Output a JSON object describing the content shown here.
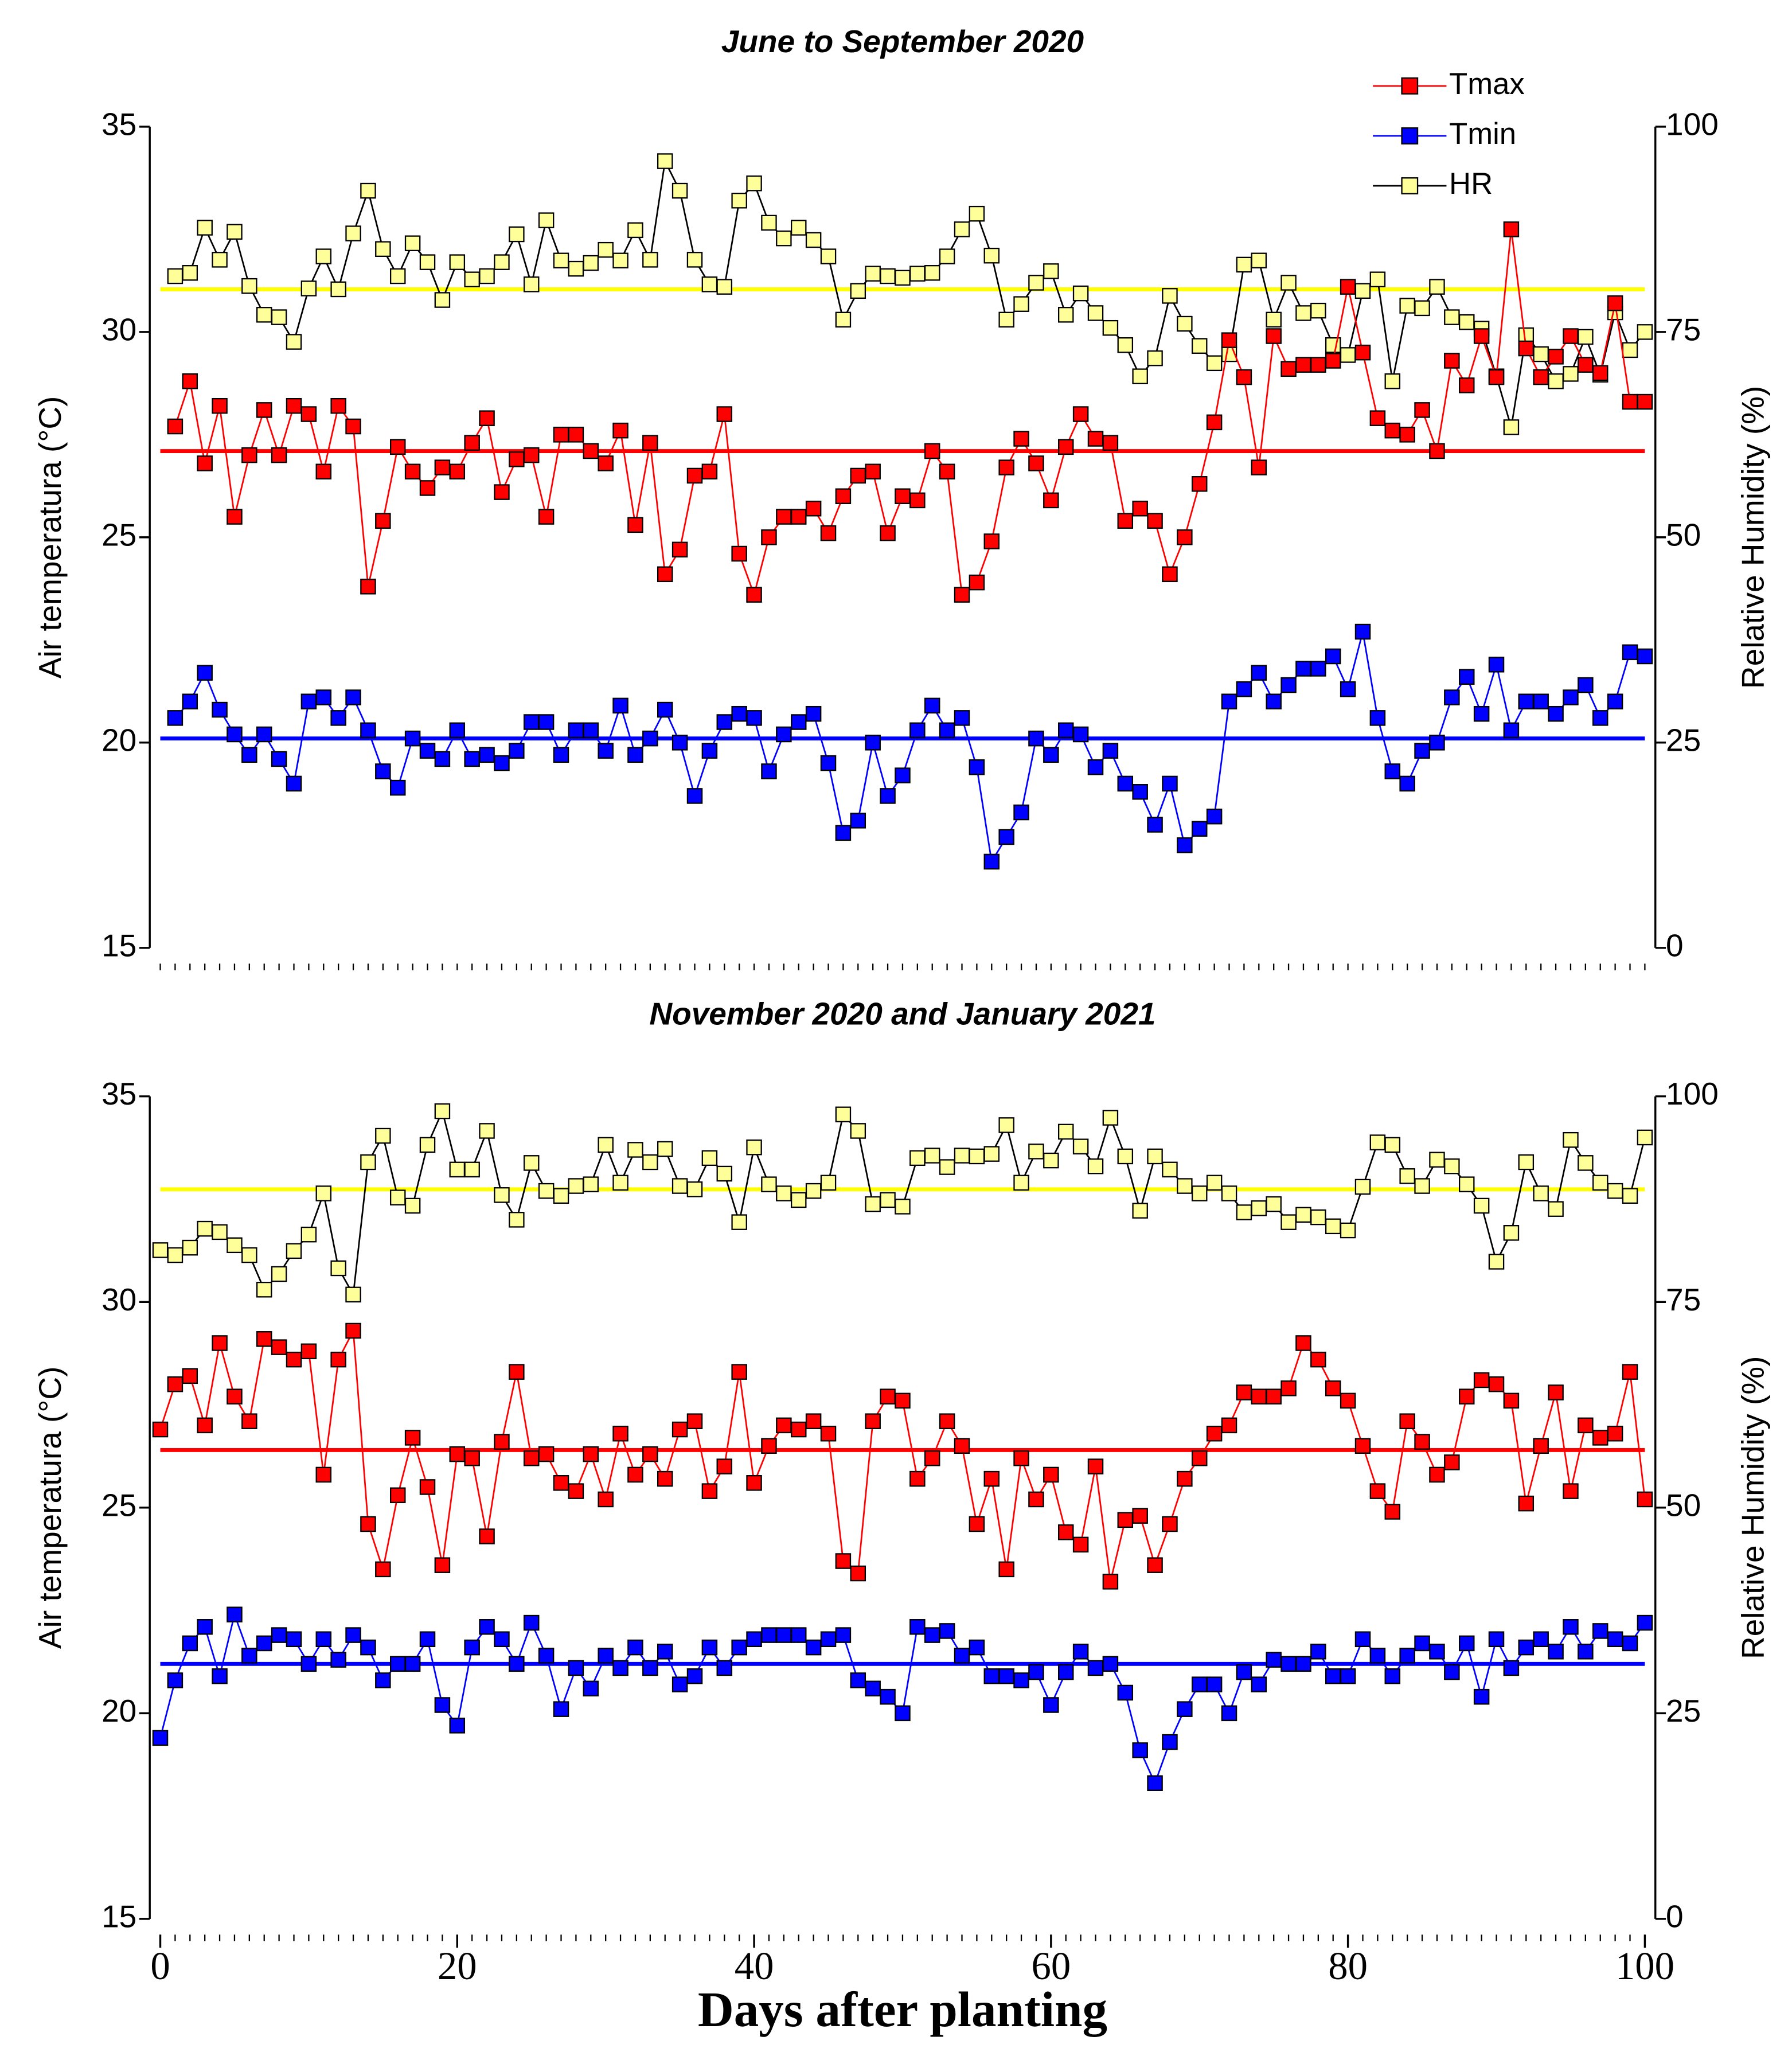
{
  "chart_data": [
    {
      "type": "line",
      "title": "June to September 2020",
      "y_label": "Air temperatura (°C)",
      "y2_label": "Relative Humidity (%)",
      "x": [
        1,
        2,
        3,
        4,
        5,
        6,
        7,
        8,
        9,
        10,
        11,
        12,
        13,
        14,
        15,
        16,
        17,
        18,
        19,
        20,
        21,
        22,
        23,
        24,
        25,
        26,
        27,
        28,
        29,
        30,
        31,
        32,
        33,
        34,
        35,
        36,
        37,
        38,
        39,
        40,
        41,
        42,
        43,
        44,
        45,
        46,
        47,
        48,
        49,
        50,
        51,
        52,
        53,
        54,
        55,
        56,
        57,
        58,
        59,
        60,
        61,
        62,
        63,
        64,
        65,
        66,
        67,
        68,
        69,
        70,
        71,
        72,
        73,
        74,
        75,
        76,
        77,
        78,
        79,
        80,
        81,
        82,
        83,
        84,
        85,
        86,
        87,
        88,
        89,
        90,
        91,
        92,
        93,
        94,
        95,
        96,
        97,
        98,
        99,
        100
      ],
      "xlim": [
        0,
        100
      ],
      "xminor": 1,
      "ylim": [
        15,
        35
      ],
      "yticks": [
        15,
        20,
        25,
        30,
        35
      ],
      "y2lim": [
        0,
        100
      ],
      "y2ticks": [
        0,
        25,
        50,
        75,
        100
      ],
      "legend": "upper right",
      "series": [
        {
          "name": "Tmax",
          "color": "#ff0000",
          "line_color": "#ff0000",
          "mean": 27.1,
          "mean_color": "#ff0000",
          "values": [
            27.7,
            28.8,
            26.8,
            28.2,
            25.5,
            27.0,
            28.1,
            27.0,
            28.2,
            28.0,
            26.6,
            28.2,
            27.7,
            23.8,
            25.4,
            27.2,
            26.6,
            26.2,
            26.7,
            26.6,
            27.3,
            27.9,
            26.1,
            26.9,
            27.0,
            25.5,
            27.5,
            27.5,
            27.1,
            26.8,
            27.6,
            25.3,
            27.3,
            24.1,
            24.7,
            26.5,
            26.6,
            28.0,
            24.6,
            23.6,
            25.0,
            25.5,
            25.5,
            25.7,
            25.1,
            26.0,
            26.5,
            26.6,
            25.1,
            26.0,
            25.9,
            27.1,
            26.6,
            23.6,
            23.9,
            24.9,
            26.7,
            27.4,
            26.8,
            25.9,
            27.2,
            28.0,
            27.4,
            27.3,
            25.4,
            25.7,
            25.4,
            24.1,
            25.0,
            26.3,
            27.8,
            29.8,
            28.9,
            26.7,
            29.9,
            29.1,
            29.2,
            29.2,
            29.3,
            31.1,
            29.5,
            27.9,
            27.6,
            27.5,
            28.1,
            27.1,
            29.3,
            28.7,
            29.9,
            28.9,
            32.5,
            29.6,
            28.9,
            29.4,
            29.9,
            29.2,
            29.0,
            30.7,
            28.3,
            28.3
          ]
        },
        {
          "name": "Tmin",
          "color": "#0000ff",
          "line_color": "#0000ff",
          "mean": 20.1,
          "mean_color": "#0000ff",
          "values": [
            20.6,
            21.0,
            21.7,
            20.8,
            20.2,
            19.7,
            20.2,
            19.6,
            19.0,
            21.0,
            21.1,
            20.6,
            21.1,
            20.3,
            19.3,
            18.9,
            20.1,
            19.8,
            19.6,
            20.3,
            19.6,
            19.7,
            19.5,
            19.8,
            20.5,
            20.5,
            19.7,
            20.3,
            20.3,
            19.8,
            20.9,
            19.7,
            20.1,
            20.8,
            20.0,
            18.7,
            19.8,
            20.5,
            20.7,
            20.6,
            19.3,
            20.2,
            20.5,
            20.7,
            19.5,
            17.8,
            18.1,
            20.0,
            18.7,
            19.2,
            20.3,
            20.9,
            20.3,
            20.6,
            19.4,
            17.1,
            17.7,
            18.3,
            20.1,
            19.7,
            20.3,
            20.2,
            19.4,
            19.8,
            19.0,
            18.8,
            18.0,
            19.0,
            17.5,
            17.9,
            18.2,
            21.0,
            21.3,
            21.7,
            21.0,
            21.4,
            21.8,
            21.8,
            22.1,
            21.3,
            22.7,
            20.6,
            19.3,
            19.0,
            19.8,
            20.0,
            21.1,
            21.6,
            20.7,
            21.9,
            20.3,
            21.0,
            21.0,
            20.7,
            21.1,
            21.4,
            20.6,
            21.0,
            22.2,
            22.1
          ]
        },
        {
          "name": "HR",
          "color": "#ffff99",
          "line_color": "#000000",
          "mean": 80.2,
          "mean_color": "#ffff00",
          "axis": "y2",
          "values": [
            81.8,
            82.2,
            87.7,
            83.8,
            87.2,
            80.6,
            77.1,
            76.8,
            73.8,
            80.3,
            84.2,
            80.2,
            87.0,
            92.2,
            85.1,
            81.8,
            85.8,
            83.5,
            78.9,
            83.5,
            81.4,
            81.8,
            83.5,
            86.9,
            80.8,
            88.6,
            83.7,
            82.7,
            83.4,
            85.0,
            83.7,
            87.4,
            83.8,
            95.8,
            92.2,
            83.8,
            80.8,
            80.5,
            91.0,
            93.1,
            88.3,
            86.4,
            87.7,
            86.2,
            84.2,
            76.5,
            80.0,
            82.1,
            81.8,
            81.6,
            82.1,
            82.2,
            84.2,
            87.5,
            89.4,
            84.3,
            76.5,
            78.4,
            81.0,
            82.4,
            77.1,
            79.7,
            77.3,
            75.5,
            73.4,
            69.6,
            71.8,
            79.4,
            76.0,
            73.3,
            71.2,
            72.3,
            83.2,
            83.7,
            76.5,
            81.0,
            77.3,
            77.6,
            73.4,
            72.2,
            80.0,
            81.4,
            69.0,
            78.2,
            77.9,
            80.5,
            76.8,
            76.2,
            75.4,
            69.6,
            63.4,
            74.6,
            72.3,
            69.0,
            69.9,
            74.4,
            69.8,
            77.4,
            72.8,
            75.0
          ]
        }
      ]
    },
    {
      "type": "line",
      "title": "November 2020 and January 2021",
      "y_label": "Air temperatura (°C)",
      "y2_label": "Relative Humidity (%)",
      "x_label": "Days after planting",
      "x": [
        0,
        1,
        2,
        3,
        4,
        5,
        6,
        7,
        8,
        9,
        10,
        11,
        12,
        13,
        14,
        15,
        16,
        17,
        18,
        19,
        20,
        21,
        22,
        23,
        24,
        25,
        26,
        27,
        28,
        29,
        30,
        31,
        32,
        33,
        34,
        35,
        36,
        37,
        38,
        39,
        40,
        41,
        42,
        43,
        44,
        45,
        46,
        47,
        48,
        49,
        50,
        51,
        52,
        53,
        54,
        55,
        56,
        57,
        58,
        59,
        60,
        61,
        62,
        63,
        64,
        65,
        66,
        67,
        68,
        69,
        70,
        71,
        72,
        73,
        74,
        75,
        76,
        77,
        78,
        79,
        80,
        81,
        82,
        83,
        84,
        85,
        86,
        87,
        88,
        89,
        90,
        91,
        92,
        93,
        94,
        95,
        96,
        97,
        98,
        99,
        100
      ],
      "xlim": [
        0,
        100
      ],
      "xticks": [
        0,
        20,
        40,
        60,
        80,
        100
      ],
      "xminor": 1,
      "ylim": [
        15,
        35
      ],
      "yticks": [
        15,
        20,
        25,
        30,
        35
      ],
      "y2lim": [
        0,
        100
      ],
      "y2ticks": [
        0,
        25,
        50,
        75,
        100
      ],
      "series": [
        {
          "name": "Tmax",
          "color": "#ff0000",
          "line_color": "#ff0000",
          "mean": 26.4,
          "mean_color": "#ff0000",
          "values": [
            26.9,
            28.0,
            28.2,
            27.0,
            29.0,
            27.7,
            27.1,
            29.1,
            28.9,
            28.6,
            28.8,
            25.8,
            28.6,
            29.3,
            24.6,
            23.5,
            25.3,
            26.7,
            25.5,
            23.6,
            26.3,
            26.2,
            24.3,
            26.6,
            28.3,
            26.2,
            26.3,
            25.6,
            25.4,
            26.3,
            25.2,
            26.8,
            25.8,
            26.3,
            25.7,
            26.9,
            27.1,
            25.4,
            26.0,
            28.3,
            25.6,
            26.5,
            27.0,
            26.9,
            27.1,
            26.8,
            23.7,
            23.4,
            27.1,
            27.7,
            27.6,
            25.7,
            26.2,
            27.1,
            26.5,
            24.6,
            25.7,
            23.5,
            26.2,
            25.2,
            25.8,
            24.4,
            24.1,
            26.0,
            23.2,
            24.7,
            24.8,
            23.6,
            24.6,
            25.7,
            26.2,
            26.8,
            27.0,
            27.8,
            27.7,
            27.7,
            27.9,
            29.0,
            28.6,
            27.9,
            27.6,
            26.5,
            25.4,
            24.9,
            27.1,
            26.6,
            25.8,
            26.1,
            27.7,
            28.1,
            28.0,
            27.6,
            25.1,
            26.5,
            27.8,
            25.4,
            27.0,
            26.7,
            26.8,
            28.3,
            25.2
          ]
        },
        {
          "name": "Tmin",
          "color": "#0000ff",
          "line_color": "#0000ff",
          "mean": 21.2,
          "mean_color": "#0000ff",
          "values": [
            19.4,
            20.8,
            21.7,
            22.1,
            20.9,
            22.4,
            21.4,
            21.7,
            21.9,
            21.8,
            21.2,
            21.8,
            21.3,
            21.9,
            21.6,
            20.8,
            21.2,
            21.2,
            21.8,
            20.2,
            19.7,
            21.6,
            22.1,
            21.8,
            21.2,
            22.2,
            21.4,
            20.1,
            21.1,
            20.6,
            21.4,
            21.1,
            21.6,
            21.1,
            21.5,
            20.7,
            20.9,
            21.6,
            21.1,
            21.6,
            21.8,
            21.9,
            21.9,
            21.9,
            21.6,
            21.8,
            21.9,
            20.8,
            20.6,
            20.4,
            20.0,
            22.1,
            21.9,
            22.0,
            21.4,
            21.6,
            20.9,
            20.9,
            20.8,
            21.0,
            20.2,
            21.0,
            21.5,
            21.1,
            21.2,
            20.5,
            19.1,
            18.3,
            19.3,
            20.1,
            20.7,
            20.7,
            20.0,
            21.0,
            20.7,
            21.3,
            21.2,
            21.2,
            21.5,
            20.9,
            20.9,
            21.8,
            21.4,
            20.9,
            21.4,
            21.7,
            21.5,
            21.0,
            21.7,
            20.4,
            21.8,
            21.1,
            21.6,
            21.8,
            21.5,
            22.1,
            21.5,
            22.0,
            21.8,
            21.7,
            22.2
          ]
        },
        {
          "name": "HR",
          "color": "#ffff99",
          "line_color": "#000000",
          "mean": 88.7,
          "mean_color": "#ffff00",
          "axis": "y2",
          "values": [
            81.3,
            80.7,
            81.6,
            83.9,
            83.5,
            81.9,
            80.7,
            76.5,
            78.4,
            81.2,
            83.2,
            88.2,
            79.1,
            75.9,
            92.0,
            95.2,
            87.7,
            86.7,
            94.1,
            98.2,
            91.1,
            91.1,
            95.8,
            88.0,
            85.0,
            91.9,
            88.5,
            87.9,
            89.1,
            89.3,
            94.1,
            89.5,
            93.5,
            92.0,
            93.6,
            89.1,
            88.7,
            92.5,
            90.6,
            84.7,
            93.8,
            89.3,
            88.2,
            87.4,
            88.5,
            89.5,
            97.8,
            95.8,
            86.9,
            87.4,
            86.6,
            92.5,
            92.8,
            91.4,
            92.8,
            92.7,
            93.0,
            96.5,
            89.5,
            93.3,
            92.2,
            95.7,
            93.9,
            91.5,
            97.4,
            92.7,
            86.1,
            92.7,
            91.1,
            89.1,
            88.2,
            89.5,
            88.2,
            85.9,
            86.4,
            86.9,
            84.7,
            85.6,
            85.3,
            84.2,
            83.7,
            89.0,
            94.4,
            94.1,
            90.3,
            89.1,
            92.3,
            91.5,
            89.3,
            86.7,
            79.9,
            83.4,
            92.0,
            88.2,
            86.3,
            94.7,
            91.9,
            89.5,
            88.5,
            87.9,
            95.0
          ]
        }
      ]
    }
  ]
}
